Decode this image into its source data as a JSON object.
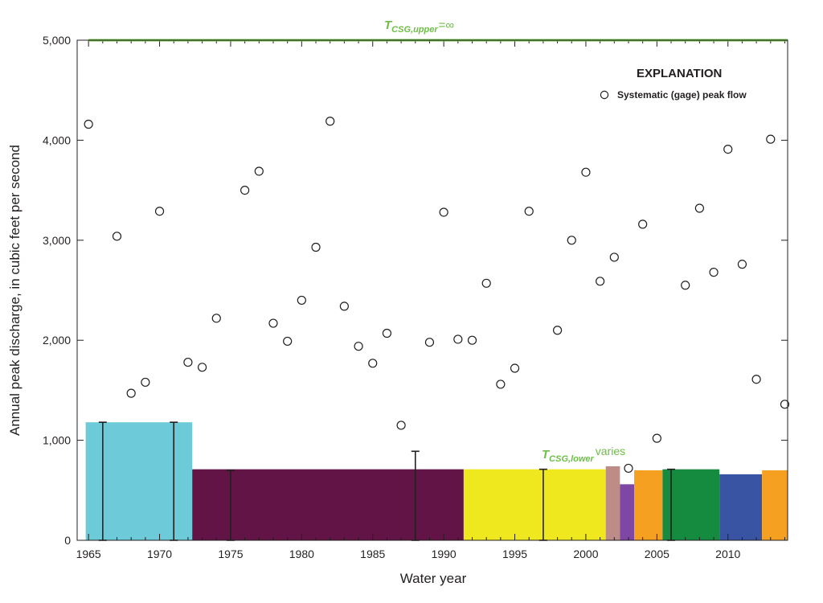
{
  "chart_data": {
    "type": "scatter",
    "xlabel": "Water year",
    "ylabel": "Annual peak discharge, in cubic feet per second",
    "xlim": [
      1964.2,
      2014.2
    ],
    "ylim": [
      0,
      5000
    ],
    "x_ticks": [
      "1965",
      "1970",
      "1975",
      "1980",
      "1985",
      "1990",
      "1995",
      "2000",
      "2005",
      "2010"
    ],
    "y_ticks": [
      "0",
      "1,000",
      "2,000",
      "3,000",
      "4,000",
      "5,000"
    ],
    "legend": {
      "title": "EXPLANATION",
      "entries": [
        "Systematic (gage) peak flow"
      ]
    },
    "upper_threshold": {
      "value": 5000,
      "label_main": "T",
      "label_sub": "CSG,upper",
      "label_suffix": "=∞",
      "color": "#6dbe45"
    },
    "lower_threshold_label": {
      "main": "T",
      "sub": "CSG,lower",
      "suffix": "varies",
      "color": "#6dbe45"
    },
    "series": [
      {
        "name": "Systematic (gage) peak flow",
        "x": [
          1965,
          1967,
          1968,
          1969,
          1970,
          1972,
          1973,
          1974,
          1976,
          1977,
          1978,
          1979,
          1980,
          1981,
          1982,
          1983,
          1984,
          1985,
          1986,
          1987,
          1989,
          1990,
          1991,
          1992,
          1993,
          1994,
          1995,
          1996,
          1998,
          1999,
          2000,
          2001,
          2002,
          2003,
          2004,
          2005,
          2007,
          2008,
          2009,
          2010,
          2011,
          2012,
          2013,
          2014
        ],
        "values": [
          4160,
          3040,
          1470,
          1580,
          3290,
          1780,
          1730,
          2220,
          3500,
          3690,
          2170,
          1990,
          2400,
          2930,
          4190,
          2340,
          1940,
          1770,
          2070,
          1150,
          1980,
          3280,
          2010,
          2000,
          2570,
          1560,
          1720,
          3290,
          2100,
          3000,
          3680,
          2590,
          2830,
          720,
          3160,
          1020,
          2550,
          3320,
          2680,
          3910,
          2760,
          1610,
          4010,
          1360
        ]
      }
    ],
    "threshold_bars": [
      {
        "start": 1964.8,
        "end": 1972.3,
        "value": 1180,
        "color": "#6ccad9"
      },
      {
        "start": 1972.3,
        "end": 1991.4,
        "value": 710,
        "color": "#611445"
      },
      {
        "start": 1991.4,
        "end": 2001.4,
        "value": 710,
        "color": "#efe81e"
      },
      {
        "start": 2001.4,
        "end": 2002.4,
        "value": 740,
        "color": "#bd8c86"
      },
      {
        "start": 2002.4,
        "end": 2003.4,
        "value": 560,
        "color": "#7e47a3"
      },
      {
        "start": 2003.4,
        "end": 2005.4,
        "value": 700,
        "color": "#f6a021"
      },
      {
        "start": 2005.4,
        "end": 2009.4,
        "value": 710,
        "color": "#158b40"
      },
      {
        "start": 2009.4,
        "end": 2012.4,
        "value": 660,
        "color": "#3a54a4"
      },
      {
        "start": 2012.4,
        "end": 2014.2,
        "value": 700,
        "color": "#f6a021"
      }
    ],
    "error_bars": [
      {
        "x": 1966,
        "low": 0,
        "high": 1180
      },
      {
        "x": 1971,
        "low": 0,
        "high": 1180
      },
      {
        "x": 1975,
        "low": 0,
        "high": 700
      },
      {
        "x": 1988,
        "low": 0,
        "high": 890
      },
      {
        "x": 1997,
        "low": 0,
        "high": 710
      },
      {
        "x": 2006,
        "low": 0,
        "high": 710
      }
    ]
  }
}
